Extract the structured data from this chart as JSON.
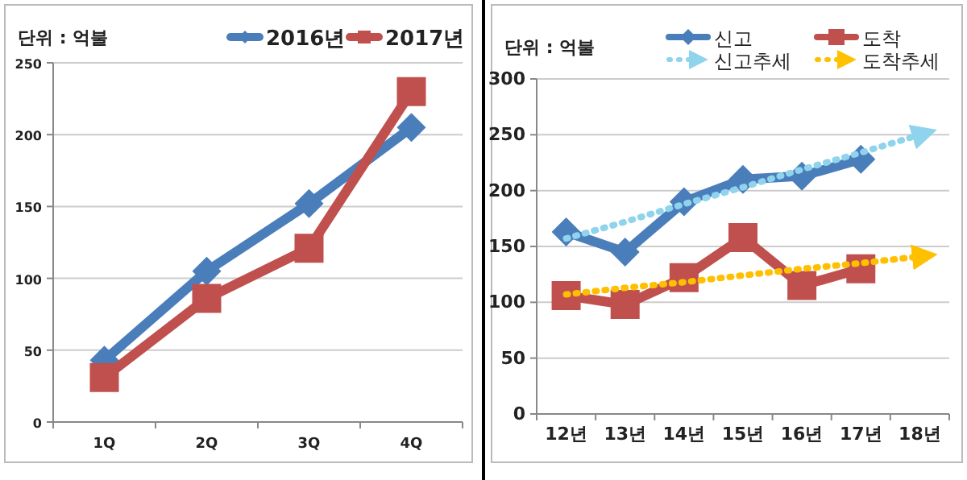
{
  "chart_data": [
    {
      "type": "line",
      "categories": [
        "1Q",
        "2Q",
        "3Q",
        "4Q"
      ],
      "ylim": [
        0,
        250
      ],
      "yticks": [
        0,
        50,
        100,
        150,
        200,
        250
      ],
      "grid": "y",
      "legend": "top right",
      "annotations": [
        "단위 : 억불"
      ],
      "series": [
        {
          "name": "2016년",
          "color": "#4a7ebb",
          "values": [
            43,
            105,
            152,
            205
          ],
          "marker": "diamond"
        },
        {
          "name": "2017년",
          "color": "#c0504d",
          "values": [
            31,
            86,
            121,
            230
          ],
          "marker": "square"
        }
      ]
    },
    {
      "type": "line",
      "categories": [
        "12년",
        "13년",
        "14년",
        "15년",
        "16년",
        "17년",
        "18년"
      ],
      "ylim": [
        0,
        300
      ],
      "yticks": [
        0,
        50,
        100,
        150,
        200,
        250,
        300
      ],
      "grid": "y",
      "legend": "top",
      "annotations": [
        "단위 : 억불"
      ],
      "series": [
        {
          "name": "신고",
          "color": "#4a7ebb",
          "values": [
            163,
            145,
            190,
            210,
            213,
            228,
            null
          ],
          "marker": "diamond"
        },
        {
          "name": "도착",
          "color": "#c0504d",
          "values": [
            106,
            98,
            122,
            158,
            115,
            130,
            null
          ],
          "marker": "square"
        },
        {
          "name": "신고추세",
          "color": "#8fd3ec",
          "values": [
            157,
            172,
            188,
            203,
            219,
            234,
            250
          ],
          "marker": "none",
          "line_style": "dotted"
        },
        {
          "name": "도착추세",
          "color": "#ffc000",
          "values": [
            107,
            113,
            118,
            124,
            130,
            135,
            141
          ],
          "marker": "none",
          "line_style": "dotted"
        }
      ]
    }
  ]
}
